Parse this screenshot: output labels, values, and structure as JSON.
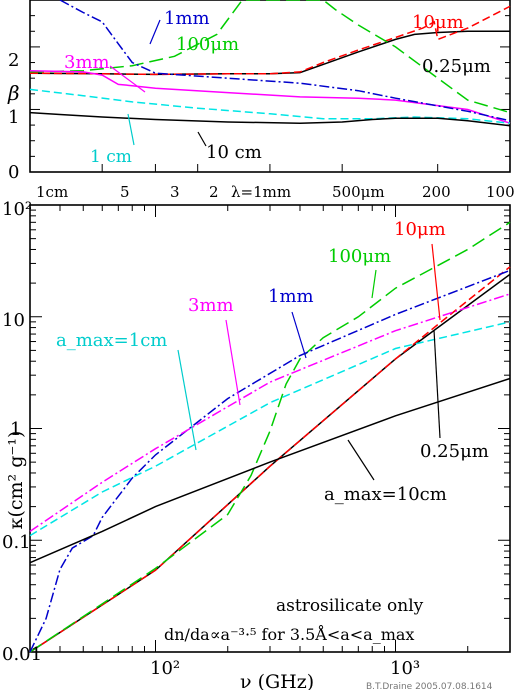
{
  "chart_data": [
    {
      "type": "line",
      "panel": "top",
      "ylabel": "β",
      "yticks": [
        "0",
        "1",
        "2"
      ],
      "ylim": [
        0,
        2.75
      ],
      "top_axis_ticks": [
        {
          "label": "1cm",
          "lambda_um": 10000
        },
        {
          "label": "5",
          "lambda_um": 5000
        },
        {
          "label": "3",
          "lambda_um": 3000
        },
        {
          "label": "2",
          "lambda_um": 2000
        },
        {
          "label": "λ=1mm",
          "lambda_um": 1000
        },
        {
          "label": "500μm",
          "lambda_um": 500
        },
        {
          "label": "200",
          "lambda_um": 200
        },
        {
          "label": "100",
          "lambda_um": 100
        }
      ],
      "series": [
        {
          "name": "0.25μm",
          "color": "#000000",
          "dash": "solid",
          "points": [
            [
              30,
              1.58
            ],
            [
              60,
              1.57
            ],
            [
              100,
              1.56
            ],
            [
              200,
              1.57
            ],
            [
              300,
              1.57
            ],
            [
              400,
              1.59
            ],
            [
              500,
              1.72
            ],
            [
              700,
              1.92
            ],
            [
              1000,
              2.12
            ],
            [
              1200,
              2.2
            ],
            [
              1500,
              2.23
            ],
            [
              2000,
              2.25
            ],
            [
              3000,
              2.25
            ]
          ]
        },
        {
          "name": "10μm",
          "color": "#ff0000",
          "dash": "8 4",
          "points": [
            [
              30,
              1.58
            ],
            [
              60,
              1.57
            ],
            [
              100,
              1.56
            ],
            [
              200,
              1.57
            ],
            [
              300,
              1.57
            ],
            [
              400,
              1.6
            ],
            [
              500,
              1.75
            ],
            [
              700,
              1.95
            ],
            [
              1000,
              2.15
            ],
            [
              1300,
              2.3
            ],
            [
              1450,
              2.4
            ],
            [
              1500,
              2.12
            ],
            [
              2000,
              2.3
            ],
            [
              3000,
              2.65
            ]
          ]
        },
        {
          "name": "100μm",
          "color": "#00cc00",
          "dash": "14 6",
          "points": [
            [
              30,
              1.6
            ],
            [
              50,
              1.62
            ],
            [
              80,
              1.7
            ],
            [
              120,
              1.85
            ],
            [
              180,
              2.2
            ],
            [
              230,
              2.75
            ],
            [
              500,
              2.75
            ],
            [
              560,
              2.6
            ],
            [
              700,
              2.35
            ],
            [
              1000,
              2.0
            ],
            [
              1500,
              1.5
            ],
            [
              2000,
              1.15
            ],
            [
              3000,
              0.95
            ]
          ]
        },
        {
          "name": "3mm",
          "color": "#ff00ff",
          "dash": "solid",
          "points": [
            [
              30,
              1.62
            ],
            [
              50,
              1.6
            ],
            [
              60,
              1.55
            ],
            [
              70,
              1.4
            ],
            [
              80,
              1.38
            ],
            [
              100,
              1.34
            ],
            [
              200,
              1.27
            ],
            [
              400,
              1.2
            ],
            [
              700,
              1.18
            ],
            [
              1000,
              1.15
            ],
            [
              2000,
              1.0
            ],
            [
              3000,
              0.78
            ]
          ]
        },
        {
          "name": "1mm",
          "color": "#0000cc",
          "dash": "10 3 2 3",
          "points": [
            [
              40,
              2.75
            ],
            [
              50,
              2.55
            ],
            [
              60,
              2.4
            ],
            [
              70,
              2.05
            ],
            [
              80,
              1.75
            ],
            [
              100,
              1.58
            ],
            [
              200,
              1.5
            ],
            [
              400,
              1.42
            ],
            [
              700,
              1.3
            ],
            [
              1000,
              1.18
            ],
            [
              2000,
              0.97
            ],
            [
              3000,
              0.82
            ]
          ]
        },
        {
          "name": "1 cm",
          "color": "#00e5e5",
          "dash": "8 4",
          "points": [
            [
              30,
              1.32
            ],
            [
              50,
              1.22
            ],
            [
              80,
              1.12
            ],
            [
              150,
              1.02
            ],
            [
              300,
              0.93
            ],
            [
              500,
              0.85
            ],
            [
              800,
              0.85
            ],
            [
              1200,
              0.88
            ],
            [
              2000,
              0.85
            ],
            [
              3000,
              0.78
            ]
          ]
        },
        {
          "name": "10 cm",
          "color": "#000000",
          "dash": "solid",
          "points": [
            [
              30,
              0.95
            ],
            [
              40,
              0.92
            ],
            [
              60,
              0.88
            ],
            [
              100,
              0.84
            ],
            [
              200,
              0.8
            ],
            [
              400,
              0.78
            ],
            [
              600,
              0.8
            ],
            [
              800,
              0.84
            ],
            [
              1000,
              0.86
            ],
            [
              1500,
              0.86
            ],
            [
              2000,
              0.82
            ],
            [
              3000,
              0.74
            ]
          ]
        }
      ],
      "annotations": [
        "1mm",
        "100μm",
        "10μm",
        "3mm",
        "0.25μm",
        "1 cm",
        "10 cm"
      ]
    },
    {
      "type": "line",
      "panel": "bottom",
      "xlabel": "ν (GHz)",
      "ylabel": "κ(cm² g⁻¹)",
      "x_scale": "log",
      "y_scale": "log",
      "xlim": [
        30,
        3000
      ],
      "ylim": [
        0.01,
        100
      ],
      "xticks": [
        "10²",
        "10³"
      ],
      "yticks": [
        "0.01",
        "0.1",
        "1",
        "10",
        "10²"
      ],
      "series": [
        {
          "name": "0.25μm",
          "color": "#000000",
          "dash": "solid",
          "points": [
            [
              30,
              0.0065
            ],
            [
              100,
              0.054
            ],
            [
              300,
              0.46
            ],
            [
              1000,
              4.2
            ],
            [
              1500,
              8.0
            ],
            [
              3000,
              24
            ]
          ]
        },
        {
          "name": "10μm",
          "color": "#ff0000",
          "dash": "8 4",
          "points": [
            [
              30,
              0.0065
            ],
            [
              100,
              0.054
            ],
            [
              300,
              0.46
            ],
            [
              1000,
              4.2
            ],
            [
              1500,
              8.5
            ],
            [
              3000,
              28
            ]
          ]
        },
        {
          "name": "100μm",
          "color": "#00cc00",
          "dash": "14 6",
          "points": [
            [
              30,
              0.0065
            ],
            [
              100,
              0.056
            ],
            [
              200,
              0.17
            ],
            [
              250,
              0.38
            ],
            [
              300,
              0.95
            ],
            [
              350,
              2.5
            ],
            [
              400,
              4.2
            ],
            [
              500,
              6.5
            ],
            [
              700,
              10
            ],
            [
              1000,
              18
            ],
            [
              2000,
              40
            ],
            [
              3000,
              70
            ]
          ]
        },
        {
          "name": "1mm",
          "color": "#0000cc",
          "dash": "10 3 2 3",
          "points": [
            [
              30,
              0.009
            ],
            [
              35,
              0.02
            ],
            [
              40,
              0.055
            ],
            [
              45,
              0.085
            ],
            [
              55,
              0.11
            ],
            [
              60,
              0.16
            ],
            [
              80,
              0.36
            ],
            [
              100,
              0.58
            ],
            [
              200,
              1.85
            ],
            [
              400,
              4.5
            ],
            [
              1000,
              10.5
            ],
            [
              3000,
              26
            ]
          ]
        },
        {
          "name": "3mm",
          "color": "#ff00ff",
          "dash": "10 3 2 3",
          "points": [
            [
              30,
              0.12
            ],
            [
              60,
              0.33
            ],
            [
              100,
              0.66
            ],
            [
              300,
              2.6
            ],
            [
              1000,
              7.5
            ],
            [
              3000,
              16
            ]
          ]
        },
        {
          "name": "a_max=1cm",
          "color": "#00e5e5",
          "dash": "8 4",
          "points": [
            [
              30,
              0.11
            ],
            [
              60,
              0.27
            ],
            [
              100,
              0.46
            ],
            [
              300,
              1.7
            ],
            [
              1000,
              5.2
            ],
            [
              3000,
              9.0
            ]
          ]
        },
        {
          "name": "a_max=10cm",
          "color": "#000000",
          "dash": "solid",
          "points": [
            [
              30,
              0.063
            ],
            [
              60,
              0.12
            ],
            [
              100,
              0.2
            ],
            [
              300,
              0.5
            ],
            [
              1000,
              1.3
            ],
            [
              3000,
              2.8
            ]
          ]
        }
      ],
      "annotations": [
        "10μm",
        "100μm",
        "3mm",
        "1mm",
        "a_max=1cm",
        "0.25μm",
        "a_max=10cm"
      ],
      "note_line1": "astrosilicate only",
      "note_line2": "dn/da∝a⁻³·⁵ for 3.5Å<a<a_max",
      "credit": "B.T.Draine 2005.07.08.1614"
    }
  ]
}
